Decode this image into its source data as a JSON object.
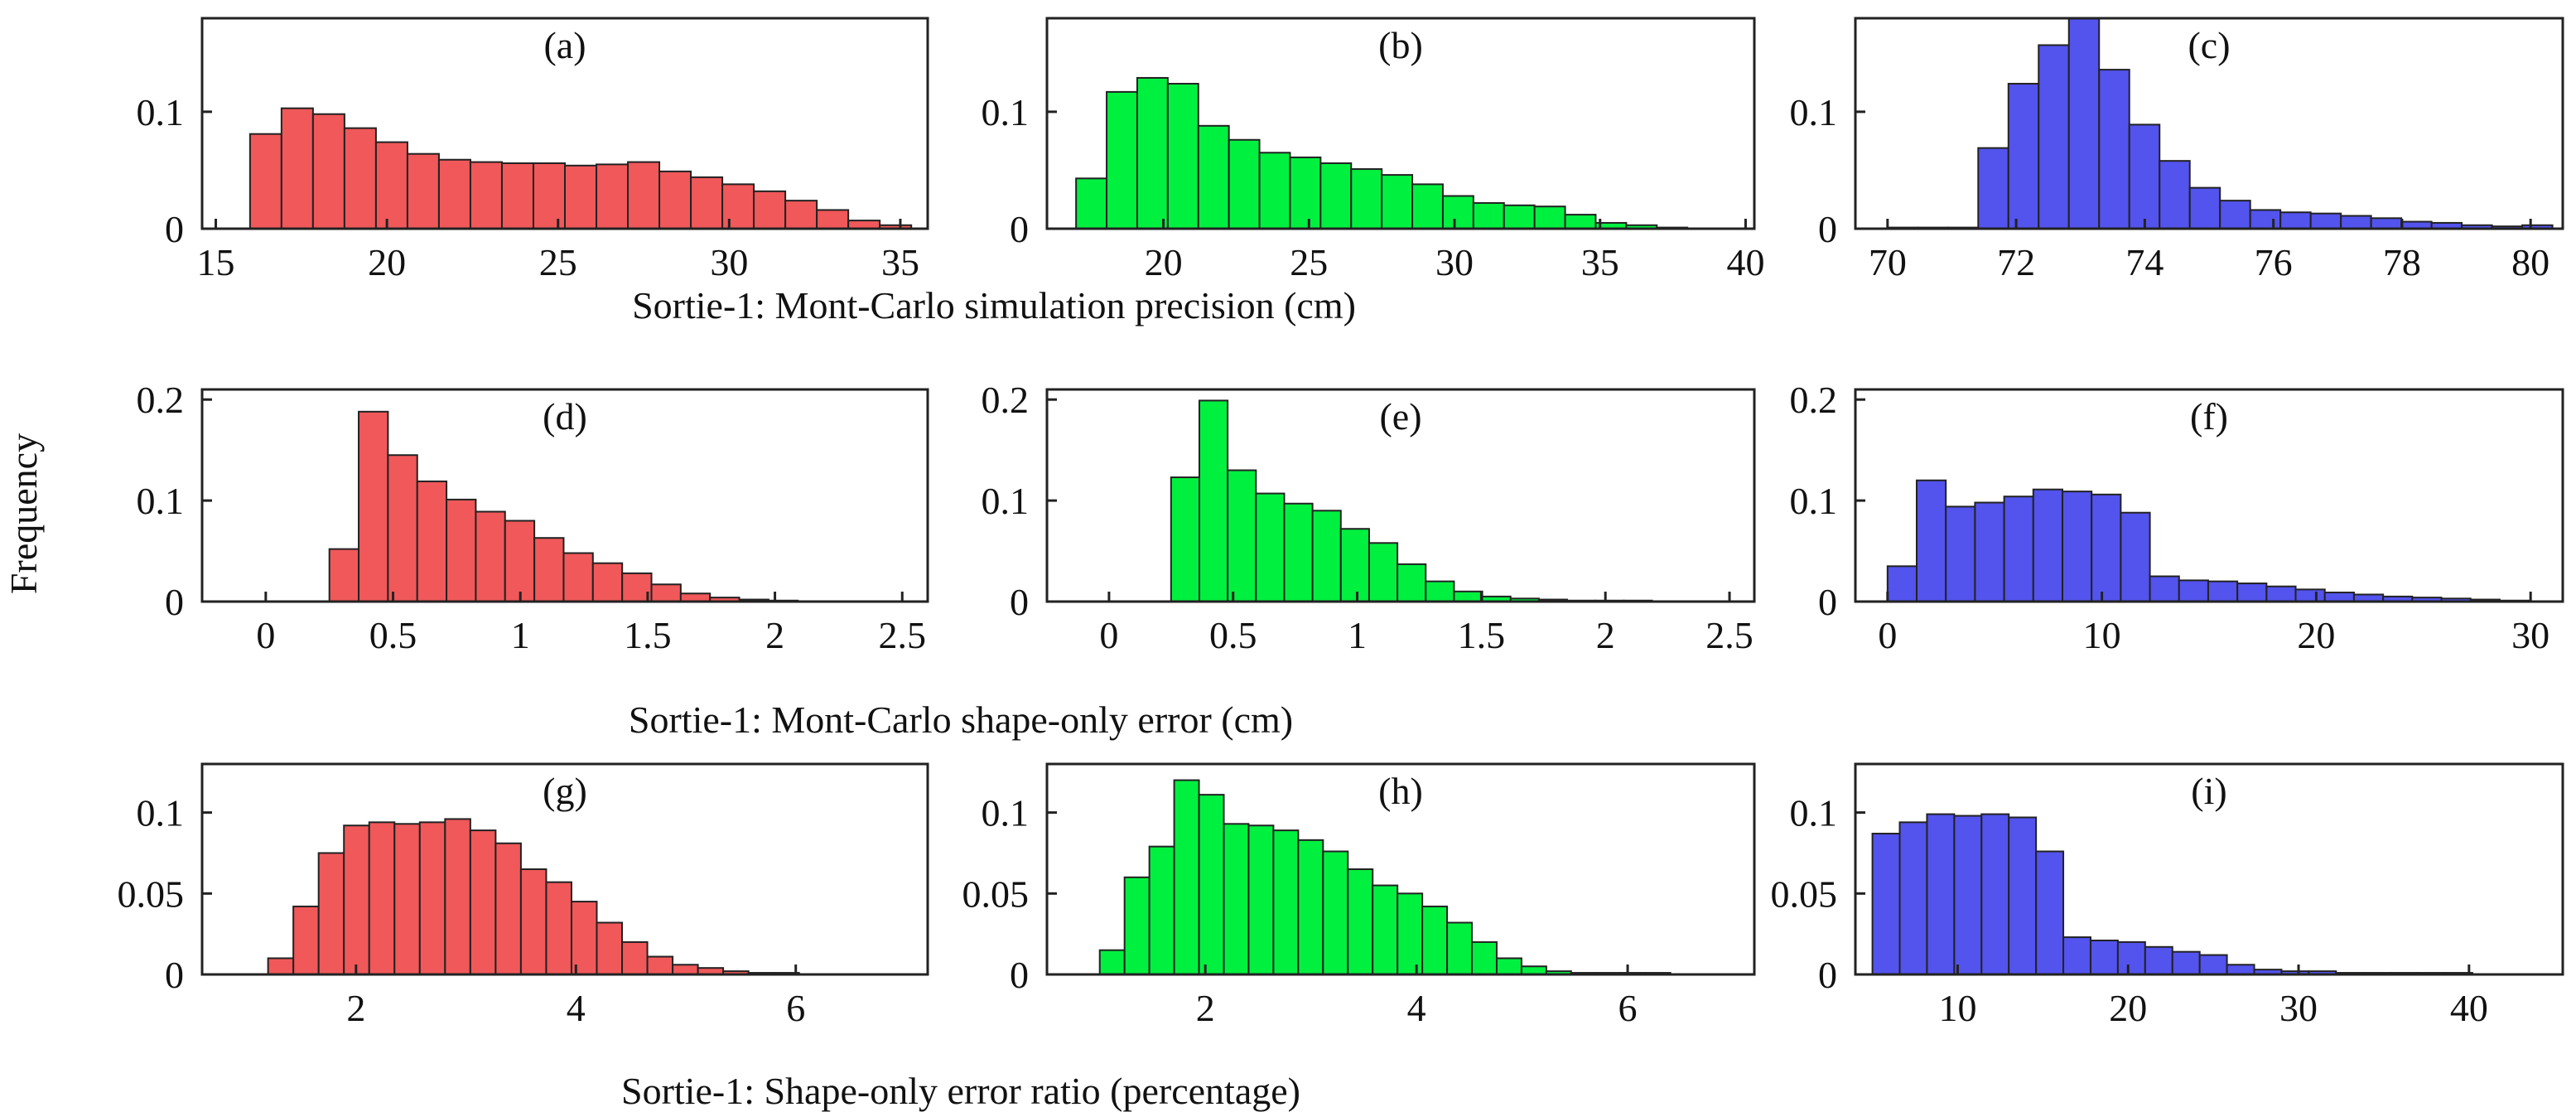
{
  "figure": {
    "y_axis_label": "Frequency",
    "row_xlabels": [
      "Sortie-1: Mont-Carlo simulation precision (cm)",
      "Sortie-1: Mont-Carlo shape-only error (cm)",
      "Sortie-1: Shape-only error ratio (percentage)"
    ]
  },
  "colors": {
    "red": "#f0585a",
    "green": "#00f040",
    "blue": "#5353ee",
    "edge": "#222222"
  },
  "chart_data": [
    {
      "type": "bar",
      "label": "(a)",
      "color": "red",
      "xlim": [
        14.6,
        35.8
      ],
      "ylim": [
        0,
        0.18
      ],
      "xticks": [
        15,
        20,
        25,
        30,
        35
      ],
      "yticks": [
        0,
        0.1
      ],
      "ytick_labels": [
        "0",
        "0.1"
      ],
      "xlabel": "Sortie-1: Mont-Carlo simulation precision (cm)",
      "ylabel": "Frequency",
      "bins": {
        "start": 16.0,
        "width": 0.92
      },
      "values": [
        0.081,
        0.103,
        0.098,
        0.086,
        0.074,
        0.064,
        0.059,
        0.057,
        0.056,
        0.056,
        0.054,
        0.055,
        0.057,
        0.049,
        0.044,
        0.038,
        0.032,
        0.024,
        0.016,
        0.007,
        0.003
      ]
    },
    {
      "type": "bar",
      "label": "(b)",
      "color": "green",
      "xlim": [
        16.0,
        40.3
      ],
      "ylim": [
        0,
        0.18
      ],
      "xticks": [
        20,
        25,
        30,
        35,
        40
      ],
      "yticks": [
        0,
        0.1
      ],
      "ytick_labels": [
        "0",
        "0.1"
      ],
      "xlabel": "Sortie-1: Mont-Carlo simulation precision (cm)",
      "ylabel": "Frequency",
      "bins": {
        "start": 17.0,
        "width": 1.05
      },
      "values": [
        0.043,
        0.117,
        0.129,
        0.124,
        0.088,
        0.076,
        0.065,
        0.061,
        0.056,
        0.051,
        0.046,
        0.038,
        0.028,
        0.022,
        0.02,
        0.019,
        0.012,
        0.005,
        0.003,
        0.001
      ]
    },
    {
      "type": "bar",
      "label": "(c)",
      "color": "blue",
      "xlim": [
        69.5,
        80.5
      ],
      "ylim": [
        0,
        0.18
      ],
      "xticks": [
        70,
        72,
        74,
        76,
        78,
        80
      ],
      "yticks": [
        0,
        0.1
      ],
      "ytick_labels": [
        "0",
        "0.1"
      ],
      "xlabel": "Sortie-1: Mont-Carlo simulation precision (cm)",
      "ylabel": "Frequency",
      "bins": {
        "start": 70.0,
        "width": 0.47
      },
      "values": [
        0.001,
        0.001,
        0.001,
        0.069,
        0.124,
        0.157,
        0.182,
        0.136,
        0.089,
        0.058,
        0.035,
        0.024,
        0.016,
        0.014,
        0.013,
        0.011,
        0.009,
        0.006,
        0.005,
        0.003,
        0.002,
        0.003
      ]
    },
    {
      "type": "bar",
      "label": "(d)",
      "color": "red",
      "xlim": [
        -0.25,
        2.6
      ],
      "ylim": [
        0,
        0.21
      ],
      "xticks": [
        0,
        0.5,
        1,
        1.5,
        2,
        2.5
      ],
      "yticks": [
        0,
        0.1,
        0.2
      ],
      "ytick_labels": [
        "0",
        "0.1",
        "0.2"
      ],
      "xlabel": "Sortie-1: Mont-Carlo shape-only error (cm)",
      "ylabel": "Frequency",
      "bins": {
        "start": 0.25,
        "width": 0.115
      },
      "values": [
        0.052,
        0.188,
        0.145,
        0.119,
        0.101,
        0.089,
        0.08,
        0.063,
        0.048,
        0.038,
        0.028,
        0.017,
        0.008,
        0.004,
        0.002,
        0.001
      ]
    },
    {
      "type": "bar",
      "label": "(e)",
      "color": "green",
      "xlim": [
        -0.25,
        2.6
      ],
      "ylim": [
        0,
        0.21
      ],
      "xticks": [
        0,
        0.5,
        1,
        1.5,
        2,
        2.5
      ],
      "yticks": [
        0,
        0.1,
        0.2
      ],
      "ytick_labels": [
        "0",
        "0.1",
        "0.2"
      ],
      "xlabel": "Sortie-1: Mont-Carlo shape-only error (cm)",
      "ylabel": "Frequency",
      "bins": {
        "start": 0.25,
        "width": 0.114
      },
      "values": [
        0.123,
        0.199,
        0.13,
        0.107,
        0.097,
        0.09,
        0.072,
        0.058,
        0.037,
        0.02,
        0.01,
        0.005,
        0.003,
        0.002,
        0.001,
        0.001,
        0.001
      ]
    },
    {
      "type": "bar",
      "label": "(f)",
      "color": "blue",
      "xlim": [
        -1.5,
        31.5
      ],
      "ylim": [
        0,
        0.21
      ],
      "xticks": [
        0,
        10,
        20,
        30
      ],
      "yticks": [
        0,
        0.1,
        0.2
      ],
      "ytick_labels": [
        "0",
        "0.1",
        "0.2"
      ],
      "xlabel": "Sortie-1: Mont-Carlo shape-only error (cm)",
      "ylabel": "Frequency",
      "bins": {
        "start": 0.0,
        "width": 1.36
      },
      "values": [
        0.035,
        0.12,
        0.094,
        0.098,
        0.104,
        0.111,
        0.109,
        0.106,
        0.088,
        0.025,
        0.021,
        0.02,
        0.018,
        0.015,
        0.012,
        0.009,
        0.007,
        0.005,
        0.004,
        0.003,
        0.002,
        0.001
      ]
    },
    {
      "type": "bar",
      "label": "(g)",
      "color": "red",
      "xlim": [
        0.6,
        7.2
      ],
      "ylim": [
        0,
        0.13
      ],
      "xticks": [
        2,
        4,
        6
      ],
      "yticks": [
        0,
        0.05,
        0.1
      ],
      "ytick_labels": [
        "0",
        "0.05",
        "0.1"
      ],
      "xlabel": "Sortie-1: Shape-only error ratio (percentage)",
      "ylabel": "Frequency",
      "bins": {
        "start": 1.2,
        "width": 0.23
      },
      "values": [
        0.01,
        0.042,
        0.075,
        0.092,
        0.094,
        0.093,
        0.094,
        0.096,
        0.089,
        0.081,
        0.065,
        0.057,
        0.045,
        0.032,
        0.02,
        0.011,
        0.006,
        0.004,
        0.002,
        0.001,
        0.001
      ]
    },
    {
      "type": "bar",
      "label": "(h)",
      "color": "green",
      "xlim": [
        0.5,
        7.2
      ],
      "ylim": [
        0,
        0.13
      ],
      "xticks": [
        2,
        4,
        6
      ],
      "yticks": [
        0,
        0.05,
        0.1
      ],
      "ytick_labels": [
        "0",
        "0.05",
        "0.1"
      ],
      "xlabel": "Sortie-1: Shape-only error ratio (percentage)",
      "ylabel": "Frequency",
      "bins": {
        "start": 1.0,
        "width": 0.235
      },
      "values": [
        0.015,
        0.06,
        0.079,
        0.12,
        0.111,
        0.093,
        0.092,
        0.089,
        0.083,
        0.076,
        0.065,
        0.055,
        0.05,
        0.042,
        0.032,
        0.02,
        0.01,
        0.005,
        0.002,
        0.001,
        0.001,
        0.001,
        0.001
      ]
    },
    {
      "type": "bar",
      "label": "(i)",
      "color": "blue",
      "xlim": [
        4.0,
        45.5
      ],
      "ylim": [
        0,
        0.13
      ],
      "xticks": [
        10,
        20,
        30,
        40
      ],
      "yticks": [
        0,
        0.05,
        0.1
      ],
      "ytick_labels": [
        "0",
        "0.05",
        "0.1"
      ],
      "xlabel": "Sortie-1: Shape-only error ratio (percentage)",
      "ylabel": "Frequency",
      "bins": {
        "start": 5.0,
        "width": 1.6
      },
      "values": [
        0.087,
        0.094,
        0.099,
        0.098,
        0.099,
        0.097,
        0.076,
        0.023,
        0.021,
        0.02,
        0.017,
        0.014,
        0.012,
        0.006,
        0.003,
        0.002,
        0.002,
        0.001,
        0.001,
        0.001,
        0.001,
        0.001
      ]
    }
  ]
}
